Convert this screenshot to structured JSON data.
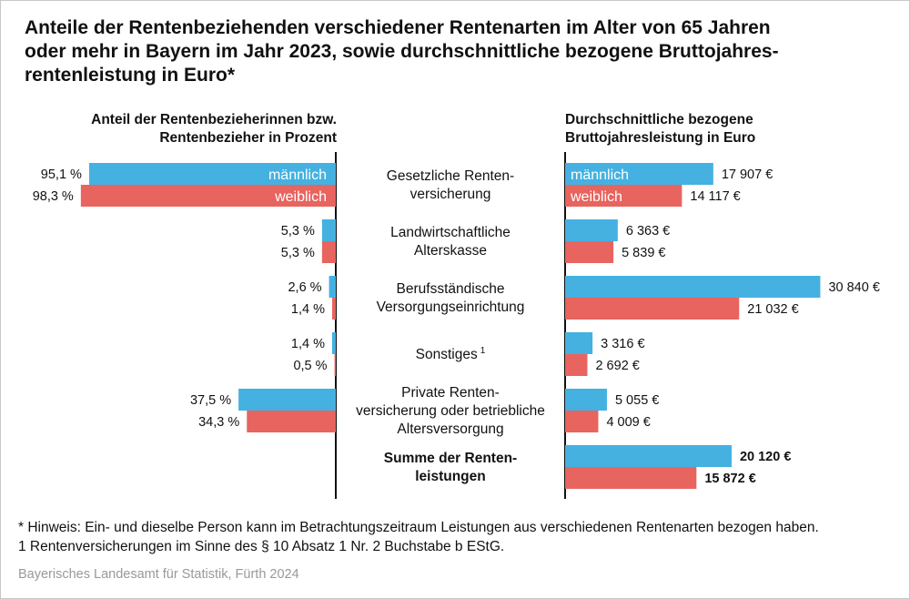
{
  "title_lines": [
    "Anteile der Rentenbeziehenden verschiedener Rentenarten im Alter von 65 Jahren",
    "oder mehr in Bayern im Jahr 2023, sowie durchschnittliche bezogene Bruttojahres-",
    "rentenleistung in Euro*"
  ],
  "left_title_lines": [
    "Anteil der Rentenbezieherinnen bzw.",
    "Rentenbezieher in Prozent"
  ],
  "right_title_lines": [
    "Durchschnittliche bezogene",
    "Bruttojahresleistung in Euro"
  ],
  "colors": {
    "male": "#44b1e1",
    "female": "#e8645f",
    "axis": "#111111"
  },
  "chart_data": [
    {
      "type": "bar",
      "orientation": "horizontal-mirrored",
      "unit": "%",
      "categories": [
        "Gesetzliche Rentenversicherung",
        "Landwirtschaftliche Alterskasse",
        "Berufsständische Versorgungseinrichtung",
        "Sonstiges",
        "Private Rentenversicherung oder betriebliche Altersversorgung"
      ],
      "series": [
        {
          "name": "männlich",
          "values": [
            95.1,
            5.3,
            2.6,
            1.4,
            37.5
          ],
          "labels": [
            "95,1 %",
            "5,3 %",
            "2,6 %",
            "1,4 %",
            "37,5 %"
          ]
        },
        {
          "name": "weiblich",
          "values": [
            98.3,
            5.3,
            1.4,
            0.5,
            34.3
          ],
          "labels": [
            "98,3 %",
            "5,3 %",
            "1,4 %",
            "0,5 %",
            "34,3 %"
          ]
        }
      ],
      "xlim": [
        0,
        100
      ]
    },
    {
      "type": "bar",
      "orientation": "horizontal",
      "unit": "€",
      "categories": [
        "Gesetzliche Rentenversicherung",
        "Landwirtschaftliche Alterskasse",
        "Berufsständische Versorgungseinrichtung",
        "Sonstiges",
        "Private Rentenversicherung oder betriebliche Altersversorgung",
        "Summe der Rentenleistungen"
      ],
      "series": [
        {
          "name": "männlich",
          "values": [
            17907,
            6363,
            30840,
            3316,
            5055,
            20120
          ],
          "labels": [
            "17 907 €",
            "6 363 €",
            "30 840 €",
            "3 316 €",
            "5 055 €",
            "20 120 €"
          ]
        },
        {
          "name": "weiblich",
          "values": [
            14117,
            5839,
            21032,
            2692,
            4009,
            15872
          ],
          "labels": [
            "14 117 €",
            "5 839 €",
            "21 032 €",
            "2 692 €",
            "4 009 €",
            "15 872 €"
          ]
        }
      ],
      "xlim": [
        0,
        32000
      ]
    }
  ],
  "category_label_lines": [
    [
      "Gesetzliche Renten-",
      "versicherung"
    ],
    [
      "Landwirtschaftliche",
      "Alterskasse"
    ],
    [
      "Berufsständische",
      "Versorgungseinrichtung"
    ],
    [
      "Sonstiges"
    ],
    [
      "Private Renten-",
      "versicherung oder betriebliche",
      "Altersversorgung"
    ],
    [
      "Summe der Renten-",
      "leistungen"
    ]
  ],
  "category_label_bold": [
    false,
    false,
    false,
    false,
    false,
    true
  ],
  "category_footnote_marks": [
    "",
    "",
    "",
    "1",
    "",
    ""
  ],
  "footnotes": [
    "* Hinweis: Ein- und dieselbe Person kann im Betrachtungszeitraum Leistungen aus verschiedenen Rentenarten bezogen haben.",
    "1 Rentenversicherungen im Sinne des § 10 Absatz 1 Nr. 2 Buchstabe b EStG."
  ],
  "source": "Bayerisches Landesamt für Statistik, Fürth 2024"
}
